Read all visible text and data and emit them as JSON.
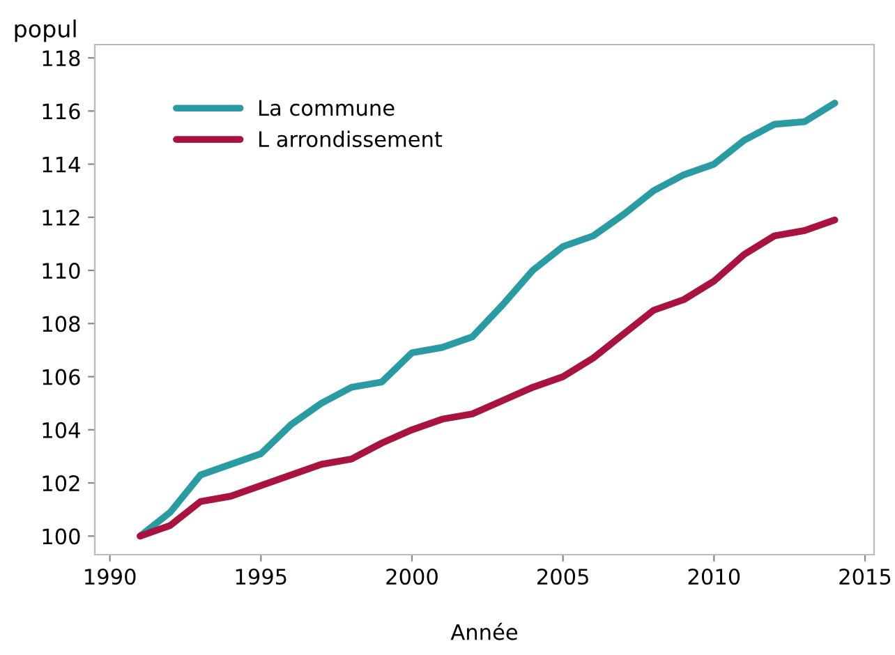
{
  "chart_data": {
    "type": "line",
    "xlabel": "Année",
    "ylabel": "popul",
    "x": [
      1991,
      1992,
      1993,
      1994,
      1995,
      1996,
      1997,
      1998,
      1999,
      2000,
      2001,
      2002,
      2003,
      2004,
      2005,
      2006,
      2007,
      2008,
      2009,
      2010,
      2011,
      2012,
      2013,
      2014
    ],
    "series": [
      {
        "name": "La commune",
        "color": "#2a9ba3",
        "values": [
          100,
          100.9,
          102.3,
          102.7,
          103.1,
          104.2,
          105.0,
          105.6,
          105.8,
          106.9,
          107.1,
          107.5,
          108.7,
          110.0,
          110.9,
          111.3,
          112.1,
          113.0,
          113.6,
          114.0,
          114.9,
          115.5,
          115.6,
          116.3
        ]
      },
      {
        "name": "L arrondissement",
        "color": "#a8143f",
        "values": [
          100,
          100.4,
          101.3,
          101.5,
          101.9,
          102.3,
          102.7,
          102.9,
          103.5,
          104.0,
          104.4,
          104.6,
          105.1,
          105.6,
          106.0,
          106.7,
          107.6,
          108.5,
          108.9,
          109.6,
          110.6,
          111.3,
          111.5,
          111.9
        ]
      }
    ],
    "xlim": [
      1989.5,
      2015.3
    ],
    "xticks": [
      1990,
      1995,
      2000,
      2005,
      2010,
      2015
    ],
    "ylim": [
      99.3,
      118.5
    ],
    "yticks": [
      100,
      102,
      104,
      106,
      108,
      110,
      112,
      114,
      116,
      118
    ],
    "grid": false,
    "legend": "top left",
    "marker": "none",
    "line_style": "solid"
  }
}
